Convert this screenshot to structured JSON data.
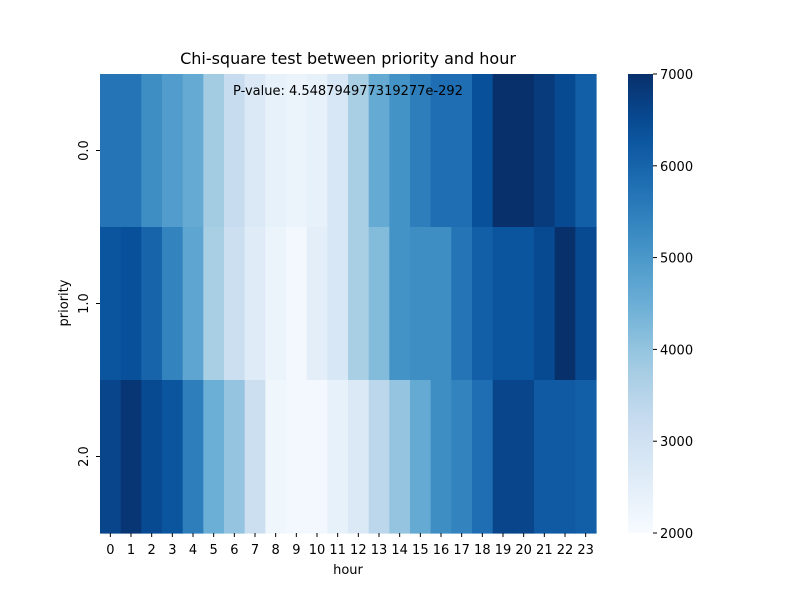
{
  "chart_data": {
    "type": "heatmap",
    "title": "Chi-square test between priority and hour",
    "xlabel": "hour",
    "ylabel": "priority",
    "annotation": "P-value: 4.548794977319277e-292",
    "x_categories": [
      "0",
      "1",
      "2",
      "3",
      "4",
      "5",
      "6",
      "7",
      "8",
      "9",
      "10",
      "11",
      "12",
      "13",
      "14",
      "15",
      "16",
      "17",
      "18",
      "19",
      "20",
      "21",
      "22",
      "23"
    ],
    "y_categories": [
      "0.0",
      "1.0",
      "2.0"
    ],
    "values": [
      [
        5700,
        5700,
        5200,
        4900,
        4600,
        3800,
        3200,
        2700,
        2400,
        2300,
        2400,
        2800,
        3700,
        4600,
        5100,
        5500,
        5800,
        5800,
        6400,
        7000,
        7000,
        6800,
        6500,
        6100
      ],
      [
        6300,
        6400,
        6000,
        5400,
        4700,
        3700,
        3100,
        2600,
        2300,
        2100,
        2500,
        2800,
        3700,
        4200,
        5100,
        5200,
        5200,
        5700,
        6100,
        6300,
        6300,
        6500,
        7000,
        6500
      ],
      [
        6600,
        6900,
        6500,
        6300,
        5500,
        4500,
        4000,
        3100,
        2200,
        2100,
        2100,
        2400,
        2700,
        3400,
        4000,
        4600,
        5200,
        5400,
        5800,
        6600,
        6600,
        6200,
        6200,
        6100
      ]
    ],
    "colorbar": {
      "min": 2000,
      "max": 7000,
      "ticks": [
        2000,
        3000,
        4000,
        5000,
        6000,
        7000
      ],
      "colormap": "Blues"
    }
  }
}
